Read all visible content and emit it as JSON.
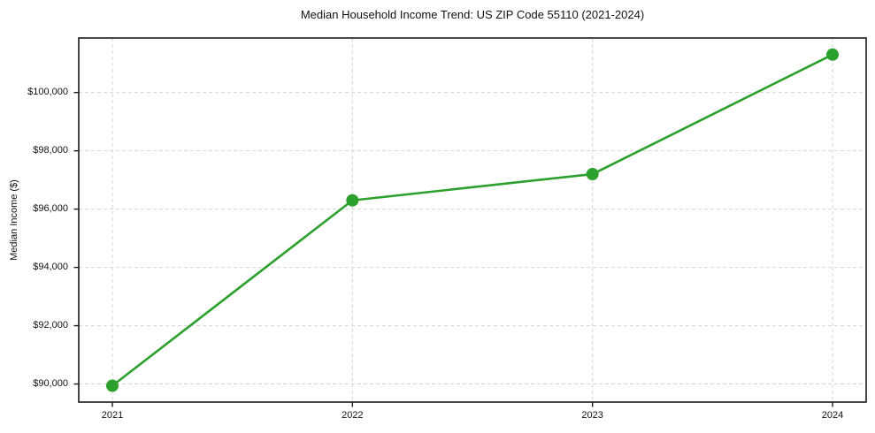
{
  "chart_data": {
    "type": "line",
    "title": "Median Household Income Trend: US ZIP Code 55110 (2021-2024)",
    "xlabel": "",
    "ylabel": "Median Income ($)",
    "x": [
      2021,
      2022,
      2023,
      2024
    ],
    "values": [
      89940,
      96300,
      97200,
      101300
    ],
    "xticks": {
      "values": [
        2021,
        2022,
        2023,
        2024
      ],
      "labels": [
        "2021",
        "2022",
        "2023",
        "2024"
      ]
    },
    "yticks": {
      "values": [
        90000,
        92000,
        94000,
        96000,
        98000,
        100000
      ],
      "labels": [
        "$90,000",
        "$92,000",
        "$94,000",
        "$96,000",
        "$98,000",
        "$100,000"
      ]
    },
    "xlim": [
      2020.86,
      2024.14
    ],
    "ylim": [
      89380,
      101870
    ],
    "grid": true,
    "grid_style": "dashed",
    "legend": false,
    "styles": {
      "line_color": "#2ca02c",
      "marker_color": "#2ca02c",
      "grid_color": "#d6d6d6",
      "spine_color": "#1a1a1a",
      "tick_color": "#1a1a1a",
      "text_color": "#111111",
      "background": "#ffffff"
    }
  }
}
